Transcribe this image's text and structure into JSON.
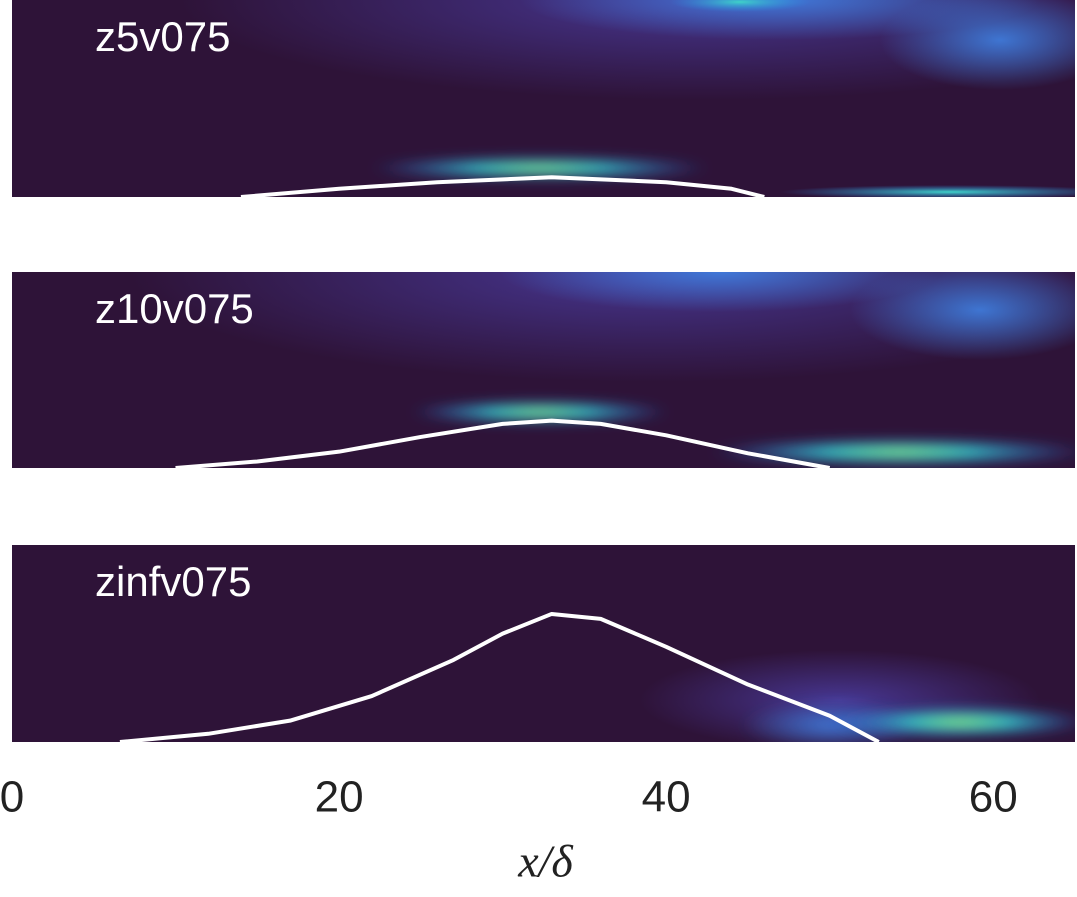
{
  "chart_data": [
    {
      "type": "line",
      "title": "z5v075",
      "xlim": [
        0,
        65
      ],
      "ylim": [
        0,
        12
      ],
      "color": "#ffffff",
      "x": [
        14,
        20,
        26,
        33,
        40,
        44,
        46
      ],
      "values": [
        0,
        0.5,
        0.9,
        1.2,
        0.9,
        0.5,
        0
      ]
    },
    {
      "type": "line",
      "title": "z10v075",
      "xlim": [
        0,
        65
      ],
      "ylim": [
        0,
        12
      ],
      "color": "#ffffff",
      "x": [
        10,
        15,
        20,
        25,
        30,
        33,
        36,
        40,
        45,
        50
      ],
      "values": [
        0,
        0.4,
        1.0,
        1.9,
        2.7,
        2.9,
        2.7,
        2.0,
        0.9,
        0
      ]
    },
    {
      "type": "line",
      "title": "zinfv075",
      "xlim": [
        0,
        65
      ],
      "ylim": [
        0,
        12
      ],
      "color": "#ffffff",
      "x": [
        6.6,
        12,
        17,
        22,
        27,
        30,
        33,
        36,
        40,
        45,
        50,
        53
      ],
      "values": [
        0,
        0.5,
        1.3,
        2.8,
        5.0,
        6.6,
        7.8,
        7.5,
        5.8,
        3.5,
        1.6,
        0
      ],
      "xticks": [
        0,
        20,
        40,
        60
      ],
      "xlabel": "x/δ"
    }
  ]
}
